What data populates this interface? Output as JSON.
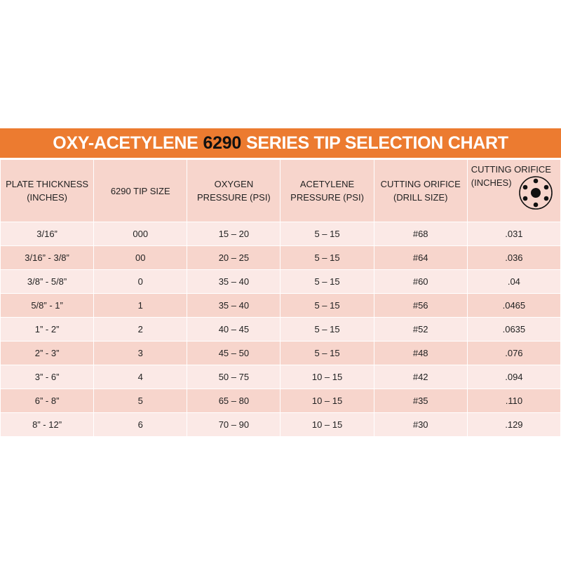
{
  "title": {
    "prefix": "OXY-ACETYLENE",
    "number": "6290",
    "suffix": "SERIES TIP SELECTION CHART"
  },
  "headers": [
    {
      "line1": "PLATE THICKNESS",
      "line2": "(INCHES)"
    },
    {
      "line1": "6290 TIP SIZE",
      "line2": ""
    },
    {
      "line1": "OXYGEN",
      "line2": "PRESSURE (PSI)"
    },
    {
      "line1": "ACETYLENE",
      "line2": "PRESSURE (PSI)"
    },
    {
      "line1": "CUTTING ORIFICE",
      "line2": "(DRILL SIZE)"
    },
    {
      "line1": "CUTTING ORIFICE",
      "line2": "(INCHES)"
    }
  ],
  "header_icon": "cutting-tip-orifice-icon",
  "colors": {
    "title_bg": "#ec7b30",
    "header_bg": "#f7d5cc",
    "row_light": "#fbe9e6",
    "row_dark": "#f7d5cc"
  },
  "rows": [
    [
      "3/16”",
      "000",
      "15 – 20",
      "5 – 15",
      "#68",
      ".031"
    ],
    [
      "3/16” - 3/8”",
      "00",
      "20 – 25",
      "5 – 15",
      "#64",
      ".036"
    ],
    [
      "3/8” - 5/8”",
      "0",
      "35 – 40",
      "5 – 15",
      "#60",
      ".04"
    ],
    [
      "5/8” - 1”",
      "1",
      "35 – 40",
      "5 – 15",
      "#56",
      ".0465"
    ],
    [
      "1” - 2”",
      "2",
      "40 – 45",
      "5 – 15",
      "#52",
      ".0635"
    ],
    [
      "2” - 3”",
      "3",
      "45 – 50",
      "5 – 15",
      "#48",
      ".076"
    ],
    [
      "3” - 6”",
      "4",
      "50 – 75",
      "10 – 15",
      "#42",
      ".094"
    ],
    [
      "6” - 8”",
      "5",
      "65 – 80",
      "10 – 15",
      "#35",
      ".110"
    ],
    [
      "8” - 12”",
      "6",
      "70 – 90",
      "10 – 15",
      "#30",
      ".129"
    ]
  ]
}
